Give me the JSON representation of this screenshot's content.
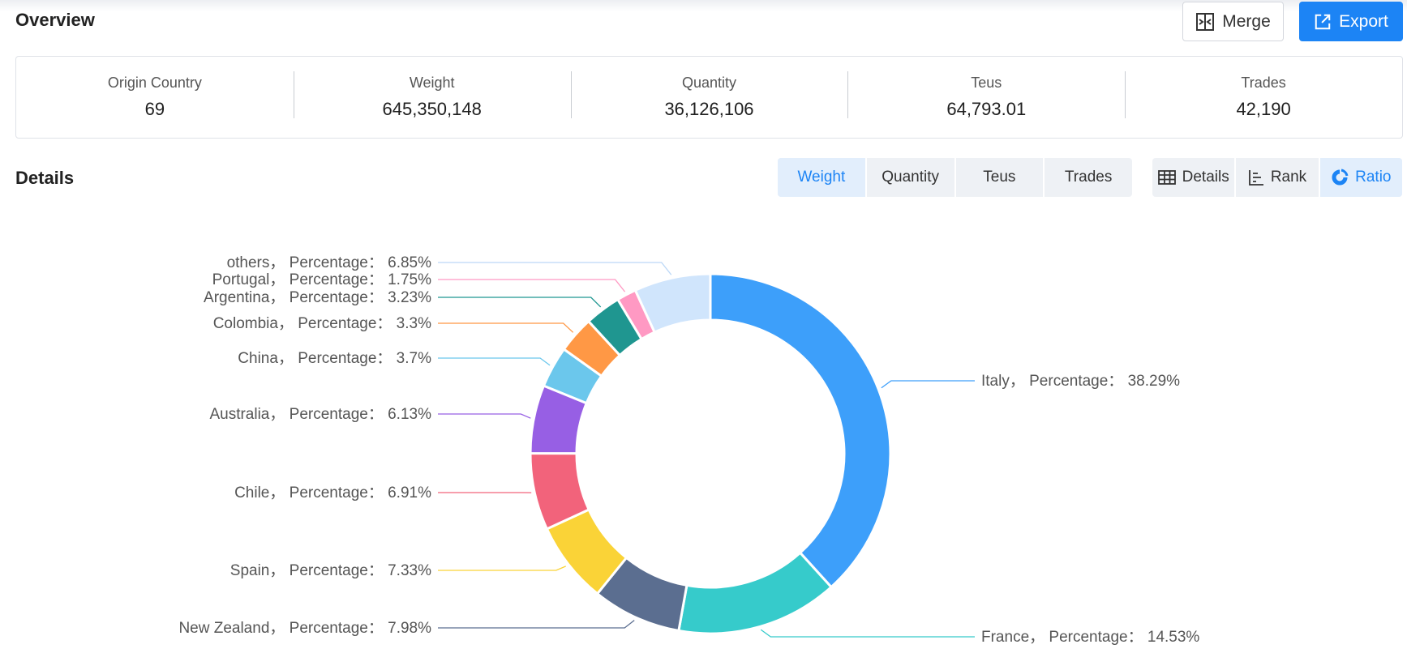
{
  "overview": {
    "title": "Overview",
    "merge_label": "Merge",
    "export_label": "Export"
  },
  "stats": [
    {
      "label": "Origin Country",
      "value": "69"
    },
    {
      "label": "Weight",
      "value": "645,350,148"
    },
    {
      "label": "Quantity",
      "value": "36,126,106"
    },
    {
      "label": "Teus",
      "value": "64,793.01"
    },
    {
      "label": "Trades",
      "value": "42,190"
    }
  ],
  "details": {
    "title": "Details",
    "metric_tabs": [
      "Weight",
      "Quantity",
      "Teus",
      "Trades"
    ],
    "active_metric": "Weight",
    "view_tabs": [
      "Details",
      "Rank",
      "Ratio"
    ],
    "active_view": "Ratio"
  },
  "chart_data": {
    "type": "pie",
    "label_key": "Percentage",
    "slices": [
      {
        "name": "Italy",
        "value": 38.29,
        "color": "#3d9ffa"
      },
      {
        "name": "France",
        "value": 14.53,
        "color": "#36cbcb"
      },
      {
        "name": "New Zealand",
        "value": 7.98,
        "color": "#5b6e90"
      },
      {
        "name": "Spain",
        "value": 7.33,
        "color": "#fad337"
      },
      {
        "name": "Chile",
        "value": 6.91,
        "color": "#f2637b"
      },
      {
        "name": "Australia",
        "value": 6.13,
        "color": "#975fe4"
      },
      {
        "name": "China",
        "value": 3.7,
        "color": "#6bc7ec"
      },
      {
        "name": "Colombia",
        "value": 3.3,
        "color": "#ff9845"
      },
      {
        "name": "Argentina",
        "value": 3.23,
        "color": "#1f9690"
      },
      {
        "name": "Portugal",
        "value": 1.75,
        "color": "#ff99c3"
      },
      {
        "name": "others",
        "value": 6.85,
        "color": "#d0e5fc"
      }
    ]
  }
}
